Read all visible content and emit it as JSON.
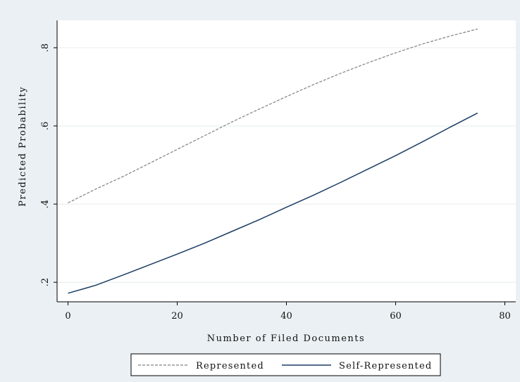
{
  "chart_data": {
    "type": "line",
    "title": "",
    "xlabel": "Number of Filed Documents",
    "ylabel": "Predicted Probability",
    "xlim": [
      -2,
      82
    ],
    "ylim": [
      0.15,
      0.87
    ],
    "x_ticks": [
      0,
      20,
      40,
      60,
      80
    ],
    "y_ticks": [
      0.2,
      0.4,
      0.6,
      0.8
    ],
    "x_tick_labels": [
      "0",
      "20",
      "40",
      "60",
      "80"
    ],
    "y_tick_labels": [
      ".2",
      ".4",
      ".6",
      ".8"
    ],
    "grid": true,
    "legend_position": "bottom",
    "series": [
      {
        "name": "Represented",
        "style": "dashed",
        "color": "#808080",
        "x": [
          0,
          5,
          10,
          15,
          20,
          25,
          30,
          35,
          40,
          45,
          50,
          55,
          60,
          65,
          70,
          75
        ],
        "y": [
          0.403,
          0.438,
          0.47,
          0.505,
          0.54,
          0.575,
          0.61,
          0.643,
          0.675,
          0.706,
          0.735,
          0.762,
          0.787,
          0.81,
          0.83,
          0.848
        ]
      },
      {
        "name": "Self-Represented",
        "style": "solid",
        "color": "#1b3c63",
        "x": [
          0,
          5,
          10,
          15,
          20,
          25,
          30,
          35,
          40,
          45,
          50,
          55,
          60,
          65,
          70,
          75
        ],
        "y": [
          0.172,
          0.192,
          0.218,
          0.245,
          0.272,
          0.3,
          0.33,
          0.36,
          0.392,
          0.423,
          0.456,
          0.49,
          0.524,
          0.56,
          0.597,
          0.633
        ]
      }
    ]
  }
}
